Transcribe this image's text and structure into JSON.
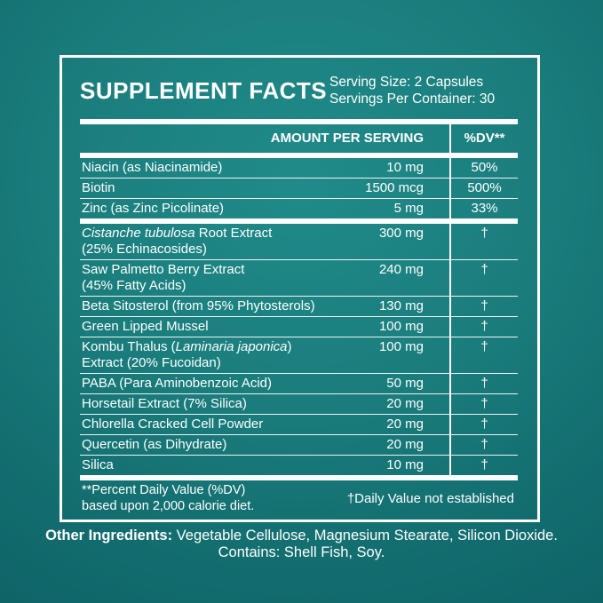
{
  "colors": {
    "background_center": "#208b8a",
    "background_edge": "#0f6468",
    "line": "#ffffff",
    "text": "#ffffff"
  },
  "header": {
    "title": "SUPPLEMENT FACTS",
    "serving_size": "Serving Size: 2 Capsules",
    "servings_per_container": "Servings Per Container: 30"
  },
  "table": {
    "col_amount_label": "AMOUNT PER SERVING",
    "col_dv_label": "%DV**",
    "dagger_symbol": "†",
    "groups": [
      {
        "rows": [
          {
            "segments": [
              {
                "t": "Niacin (as Niacinamide)"
              }
            ],
            "amount": "10 mg",
            "dv": "50%"
          },
          {
            "segments": [
              {
                "t": "Biotin"
              }
            ],
            "amount": "1500 mcg",
            "dv": "500%"
          },
          {
            "segments": [
              {
                "t": "Zinc (as Zinc Picolinate)"
              }
            ],
            "amount": "5 mg",
            "dv": "33%"
          }
        ]
      },
      {
        "rows": [
          {
            "segments": [
              {
                "t": "Cistanche tubulosa",
                "i": true
              },
              {
                "t": " Root Extract"
              }
            ],
            "line2": "(25% Echinacosides)",
            "amount": "300 mg",
            "dv": "†"
          },
          {
            "segments": [
              {
                "t": "Saw Palmetto Berry Extract"
              }
            ],
            "line2": "(45% Fatty Acids)",
            "amount": "240 mg",
            "dv": "†"
          },
          {
            "segments": [
              {
                "t": "Beta Sitosterol (from 95% Phytosterols)"
              }
            ],
            "amount": "130 mg",
            "dv": "†"
          },
          {
            "segments": [
              {
                "t": "Green Lipped Mussel"
              }
            ],
            "amount": "100 mg",
            "dv": "†"
          },
          {
            "segments": [
              {
                "t": "Kombu Thalus ("
              },
              {
                "t": "Laminaria japonica",
                "i": true
              },
              {
                "t": ")"
              }
            ],
            "line2": "Extract (20% Fucoidan)",
            "amount": "100 mg",
            "dv": "†"
          },
          {
            "segments": [
              {
                "t": "PABA (Para Aminobenzoic Acid)"
              }
            ],
            "amount": "50 mg",
            "dv": "†"
          },
          {
            "segments": [
              {
                "t": "Horsetail Extract (7% Silica)"
              }
            ],
            "amount": "20 mg",
            "dv": "†"
          },
          {
            "segments": [
              {
                "t": "Chlorella Cracked Cell Powder"
              }
            ],
            "amount": "20 mg",
            "dv": "†"
          },
          {
            "segments": [
              {
                "t": "Quercetin (as Dihydrate)"
              }
            ],
            "amount": "20 mg",
            "dv": "†"
          },
          {
            "segments": [
              {
                "t": "Silica"
              }
            ],
            "amount": "10 mg",
            "dv": "†"
          }
        ]
      }
    ]
  },
  "footnote": {
    "left_line1": "**Percent Daily Value (%DV)",
    "left_line2": "based upon 2,000 calorie diet.",
    "right": "†Daily Value not established"
  },
  "other_ingredients": {
    "bold_label": "Other Ingredients:",
    "line1_rest": " Vegetable Cellulose, Magnesium Stearate, Silicon Dioxide.",
    "line2": "Contains: Shell Fish, Soy."
  }
}
